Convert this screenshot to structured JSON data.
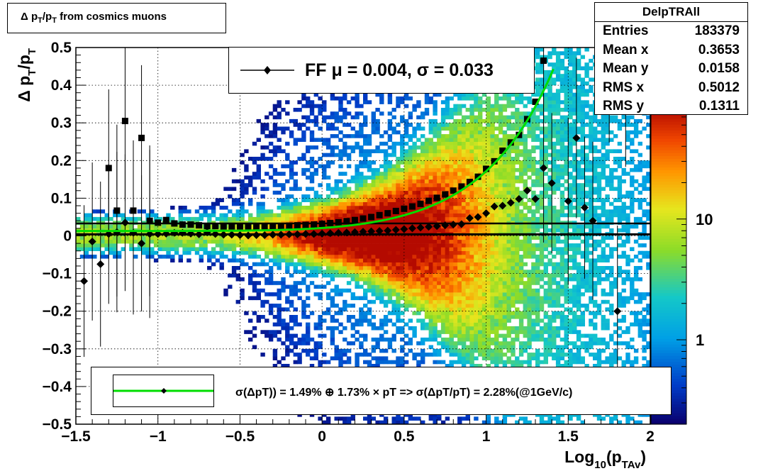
{
  "title": "Δ p_T/p_T from cosmics muons",
  "stats": {
    "name": "DelpTRAll",
    "rows": [
      {
        "label": "Entries",
        "value": "183379"
      },
      {
        "label": "Mean x",
        "value": "0.3653"
      },
      {
        "label": "Mean y",
        "value": "0.0158"
      },
      {
        "label": "RMS x",
        "value": "0.5012"
      },
      {
        "label": "RMS y",
        "value": "0.1311"
      }
    ]
  },
  "fit_legend": "FF μ =  0.004, σ =   0.033",
  "resolution_legend": "σ(ΔpT)) =  1.49% ⊕  1.73% × pT => σ(ΔpT/pT) =  2.28%(@1GeV/c)",
  "colors": {
    "fit_curve": "#00dd00",
    "markers": "#000000"
  },
  "chart_data": {
    "type": "heatmap",
    "xlabel": "Log_10(p_TAv)",
    "ylabel": "Δ p_T/p_T",
    "xlim": [
      -1.5,
      2.0
    ],
    "ylim": [
      -0.5,
      0.5
    ],
    "x_ticks": [
      "−1.5",
      "−1",
      "−0.5",
      "0",
      "0.5",
      "1",
      "1.5",
      "2"
    ],
    "y_ticks": [
      "−0.5",
      "−0.4",
      "−0.3",
      "−0.2",
      "−0.1",
      "0",
      "0.1",
      "0.2",
      "0.3",
      "0.4",
      "0.5"
    ],
    "colorbar": {
      "scale": "log",
      "tick_labels": [
        "1",
        "10"
      ],
      "range": [
        0.2,
        80
      ]
    },
    "grid": true,
    "series": [
      {
        "marker": "square",
        "points": [
          [
            -1.3,
            0.18
          ],
          [
            -1.25,
            0.067
          ],
          [
            -1.2,
            0.305
          ],
          [
            -1.15,
            0.067
          ],
          [
            -1.1,
            0.26
          ],
          [
            -1.05,
            0.04
          ],
          [
            -1.0,
            0.035
          ],
          [
            -0.95,
            0.042
          ],
          [
            -0.9,
            0.033
          ],
          [
            -0.85,
            0.03
          ],
          [
            -0.8,
            0.03
          ],
          [
            -0.75,
            0.028
          ],
          [
            -0.7,
            0.026
          ],
          [
            -0.65,
            0.026
          ],
          [
            -0.6,
            0.025
          ],
          [
            -0.55,
            0.025
          ],
          [
            -0.5,
            0.025
          ],
          [
            -0.45,
            0.025
          ],
          [
            -0.4,
            0.025
          ],
          [
            -0.35,
            0.025
          ],
          [
            -0.3,
            0.026
          ],
          [
            -0.25,
            0.026
          ],
          [
            -0.2,
            0.027
          ],
          [
            -0.15,
            0.028
          ],
          [
            -0.1,
            0.029
          ],
          [
            -0.05,
            0.03
          ],
          [
            0.0,
            0.032
          ],
          [
            0.05,
            0.034
          ],
          [
            0.1,
            0.036
          ],
          [
            0.15,
            0.039
          ],
          [
            0.2,
            0.042
          ],
          [
            0.25,
            0.046
          ],
          [
            0.3,
            0.05
          ],
          [
            0.35,
            0.055
          ],
          [
            0.4,
            0.06
          ],
          [
            0.45,
            0.066
          ],
          [
            0.5,
            0.072
          ],
          [
            0.55,
            0.078
          ],
          [
            0.6,
            0.085
          ],
          [
            0.65,
            0.093
          ],
          [
            0.7,
            0.101
          ],
          [
            0.75,
            0.11
          ],
          [
            0.8,
            0.12
          ],
          [
            0.85,
            0.131
          ],
          [
            0.9,
            0.143
          ],
          [
            0.95,
            0.157
          ],
          [
            1.0,
            0.178
          ],
          [
            1.05,
            0.198
          ],
          [
            1.1,
            0.226
          ],
          [
            1.15,
            0.248
          ],
          [
            1.2,
            0.268
          ],
          [
            1.25,
            0.31
          ],
          [
            1.3,
            0.356
          ],
          [
            1.35,
            0.465
          ]
        ]
      },
      {
        "marker": "diamond",
        "points": [
          [
            -1.45,
            -0.12
          ],
          [
            -1.4,
            -0.015
          ],
          [
            -1.35,
            -0.075
          ],
          [
            -1.3,
            0.005
          ],
          [
            -1.25,
            0.01
          ],
          [
            -1.2,
            0.035
          ],
          [
            -1.15,
            0.008
          ],
          [
            -1.1,
            -0.02
          ],
          [
            -1.05,
            0.005
          ],
          [
            -1.0,
            0.005
          ],
          [
            -0.95,
            0.006
          ],
          [
            -0.9,
            0.008
          ],
          [
            -0.85,
            0.008
          ],
          [
            -0.8,
            0.006
          ],
          [
            -0.75,
            0.004
          ],
          [
            -0.7,
            0.01
          ],
          [
            -0.65,
            0.005
          ],
          [
            -0.6,
            0.003
          ],
          [
            -0.55,
            0.003
          ],
          [
            -0.5,
            0.002
          ],
          [
            -0.45,
            0.001
          ],
          [
            -0.4,
            0.002
          ],
          [
            -0.35,
            0.002
          ],
          [
            -0.3,
            0.003
          ],
          [
            -0.25,
            0.003
          ],
          [
            -0.2,
            0.004
          ],
          [
            -0.15,
            0.004
          ],
          [
            -0.1,
            0.005
          ],
          [
            -0.05,
            0.005
          ],
          [
            0.0,
            0.006
          ],
          [
            0.05,
            0.007
          ],
          [
            0.1,
            0.008
          ],
          [
            0.15,
            0.009
          ],
          [
            0.2,
            0.01
          ],
          [
            0.25,
            0.011
          ],
          [
            0.3,
            0.012
          ],
          [
            0.35,
            0.013
          ],
          [
            0.4,
            0.014
          ],
          [
            0.45,
            0.016
          ],
          [
            0.5,
            0.018
          ],
          [
            0.55,
            0.02
          ],
          [
            0.6,
            0.022
          ],
          [
            0.65,
            0.024
          ],
          [
            0.7,
            0.026
          ],
          [
            0.75,
            0.028
          ],
          [
            0.8,
            0.03
          ],
          [
            0.85,
            0.031
          ],
          [
            0.9,
            0.047
          ],
          [
            0.95,
            0.05
          ],
          [
            1.0,
            0.06
          ],
          [
            1.05,
            0.078
          ],
          [
            1.1,
            0.08
          ],
          [
            1.15,
            0.088
          ],
          [
            1.2,
            0.098
          ],
          [
            1.25,
            0.12
          ],
          [
            1.3,
            0.098
          ],
          [
            1.35,
            0.18
          ],
          [
            1.4,
            0.14
          ],
          [
            1.5,
            0.092
          ],
          [
            1.55,
            0.26
          ],
          [
            1.6,
            0.075
          ],
          [
            1.65,
            0.04
          ],
          [
            1.75,
            0.445
          ],
          [
            1.8,
            -0.2
          ],
          [
            1.85,
            0.41
          ]
        ]
      }
    ],
    "fit_curves": [
      {
        "name": "gaussian mean",
        "y": 0.004,
        "color": "#000000"
      },
      {
        "name": "resolution model",
        "color": "#00dd00",
        "formula": "sqrt(0.0149^2 + (0.0173*10^x)^2) - 0.002"
      }
    ],
    "reference_line": {
      "y": 0.033,
      "color": "#000000"
    }
  }
}
